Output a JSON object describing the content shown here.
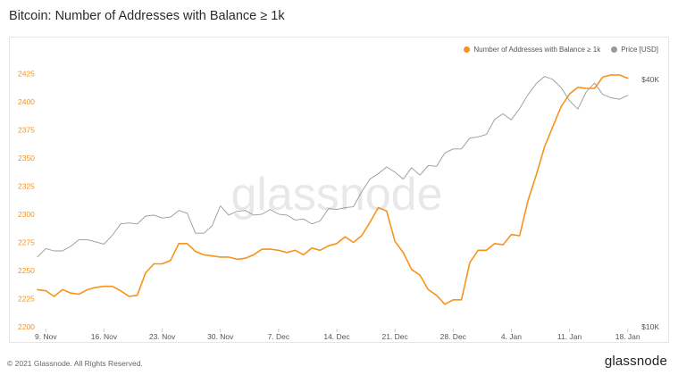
{
  "title": "Bitcoin: Number of Addresses with Balance ≥ 1k",
  "watermark": "glassnode",
  "footer": {
    "copyright": "© 2021 Glassnode. All Rights Reserved.",
    "logo": "glassnode"
  },
  "colors": {
    "addresses": "#f7931a",
    "price": "#999999",
    "axis_left": "#f7931a",
    "axis_right": "#555555"
  },
  "chart_data": {
    "type": "line",
    "title": "Bitcoin: Number of Addresses with Balance ≥ 1k",
    "legend_position": "top-right",
    "grid": false,
    "x_range": [
      "2020-11-08",
      "2021-01-19"
    ],
    "x_tick_labels": [
      "9. Nov",
      "16. Nov",
      "23. Nov",
      "30. Nov",
      "7. Dec",
      "14. Dec",
      "21. Dec",
      "28. Dec",
      "4. Jan",
      "11. Jan",
      "18. Jan"
    ],
    "x_tick_dates": [
      "2020-11-09",
      "2020-11-16",
      "2020-11-23",
      "2020-11-30",
      "2020-12-07",
      "2020-12-14",
      "2020-12-21",
      "2020-12-28",
      "2021-01-04",
      "2021-01-11",
      "2021-01-18"
    ],
    "y_left": {
      "ylim": [
        2200,
        2435
      ],
      "ticks": [
        2200,
        2225,
        2250,
        2275,
        2300,
        2325,
        2350,
        2375,
        2400,
        2425
      ]
    },
    "y_right": {
      "scale": "log",
      "ylim": [
        10000,
        44000
      ],
      "tick_values": [
        10000,
        40000
      ],
      "tick_labels": [
        "$10K",
        "$40K"
      ]
    },
    "series": [
      {
        "name": "Number of Addresses with Balance ≥ 1k",
        "axis": "left",
        "x": [
          "2020-11-08",
          "2020-11-09",
          "2020-11-10",
          "2020-11-11",
          "2020-11-12",
          "2020-11-13",
          "2020-11-14",
          "2020-11-15",
          "2020-11-16",
          "2020-11-17",
          "2020-11-18",
          "2020-11-19",
          "2020-11-20",
          "2020-11-21",
          "2020-11-22",
          "2020-11-23",
          "2020-11-24",
          "2020-11-25",
          "2020-11-26",
          "2020-11-27",
          "2020-11-28",
          "2020-11-29",
          "2020-11-30",
          "2020-12-01",
          "2020-12-02",
          "2020-12-03",
          "2020-12-04",
          "2020-12-05",
          "2020-12-06",
          "2020-12-07",
          "2020-12-08",
          "2020-12-09",
          "2020-12-10",
          "2020-12-11",
          "2020-12-12",
          "2020-12-13",
          "2020-12-14",
          "2020-12-15",
          "2020-12-16",
          "2020-12-17",
          "2020-12-18",
          "2020-12-19",
          "2020-12-20",
          "2020-12-21",
          "2020-12-22",
          "2020-12-23",
          "2020-12-24",
          "2020-12-25",
          "2020-12-26",
          "2020-12-27",
          "2020-12-28",
          "2020-12-29",
          "2020-12-30",
          "2020-12-31",
          "2021-01-01",
          "2021-01-02",
          "2021-01-03",
          "2021-01-04",
          "2021-01-05",
          "2021-01-06",
          "2021-01-07",
          "2021-01-08",
          "2021-01-09",
          "2021-01-10",
          "2021-01-11",
          "2021-01-12",
          "2021-01-13",
          "2021-01-14",
          "2021-01-15",
          "2021-01-16",
          "2021-01-17",
          "2021-01-18"
        ],
        "values": [
          2233,
          2232,
          2227,
          2233,
          2230,
          2229,
          2233,
          2235,
          2236,
          2236,
          2232,
          2227,
          2228,
          2248,
          2256,
          2256,
          2259,
          2274,
          2274,
          2267,
          2264,
          2263,
          2262,
          2262,
          2260,
          2261,
          2264,
          2269,
          2269,
          2268,
          2266,
          2268,
          2264,
          2270,
          2268,
          2272,
          2274,
          2280,
          2275,
          2281,
          2293,
          2306,
          2303,
          2276,
          2266,
          2251,
          2246,
          2233,
          2228,
          2220,
          2224,
          2224,
          2257,
          2268,
          2268,
          2274,
          2273,
          2282,
          2281,
          2312,
          2335,
          2360,
          2378,
          2396,
          2407,
          2413,
          2412,
          2412,
          2422,
          2424,
          2424,
          2421
        ]
      },
      {
        "name": "Price [USD]",
        "axis": "right",
        "x": [
          "2020-11-08",
          "2020-11-09",
          "2020-11-10",
          "2020-11-11",
          "2020-11-12",
          "2020-11-13",
          "2020-11-14",
          "2020-11-15",
          "2020-11-16",
          "2020-11-17",
          "2020-11-18",
          "2020-11-19",
          "2020-11-20",
          "2020-11-21",
          "2020-11-22",
          "2020-11-23",
          "2020-11-24",
          "2020-11-25",
          "2020-11-26",
          "2020-11-27",
          "2020-11-28",
          "2020-11-29",
          "2020-11-30",
          "2020-12-01",
          "2020-12-02",
          "2020-12-03",
          "2020-12-04",
          "2020-12-05",
          "2020-12-06",
          "2020-12-07",
          "2020-12-08",
          "2020-12-09",
          "2020-12-10",
          "2020-12-11",
          "2020-12-12",
          "2020-12-13",
          "2020-12-14",
          "2020-12-15",
          "2020-12-16",
          "2020-12-17",
          "2020-12-18",
          "2020-12-19",
          "2020-12-20",
          "2020-12-21",
          "2020-12-22",
          "2020-12-23",
          "2020-12-24",
          "2020-12-25",
          "2020-12-26",
          "2020-12-27",
          "2020-12-28",
          "2020-12-29",
          "2020-12-30",
          "2020-12-31",
          "2021-01-01",
          "2021-01-02",
          "2021-01-03",
          "2021-01-04",
          "2021-01-05",
          "2021-01-06",
          "2021-01-07",
          "2021-01-08",
          "2021-01-09",
          "2021-01-10",
          "2021-01-11",
          "2021-01-12",
          "2021-01-13",
          "2021-01-14",
          "2021-01-15",
          "2021-01-16",
          "2021-01-17",
          "2021-01-18"
        ],
        "values": [
          14800,
          15500,
          15300,
          15300,
          15700,
          16300,
          16300,
          16100,
          15900,
          16700,
          17800,
          17900,
          17800,
          18600,
          18700,
          18400,
          18500,
          19200,
          18900,
          16900,
          16900,
          17600,
          19700,
          18700,
          19100,
          19200,
          18700,
          18800,
          19300,
          18800,
          18700,
          18200,
          18300,
          17800,
          18100,
          19400,
          19300,
          19500,
          19600,
          21300,
          22900,
          23600,
          24500,
          23800,
          22900,
          24400,
          23400,
          24700,
          24600,
          26500,
          27100,
          27100,
          28800,
          29000,
          29400,
          32000,
          33000,
          31900,
          34000,
          36700,
          39100,
          40700,
          40000,
          38200,
          35500,
          33900,
          37300,
          39200,
          36800,
          36100,
          35800,
          36600
        ]
      }
    ]
  }
}
